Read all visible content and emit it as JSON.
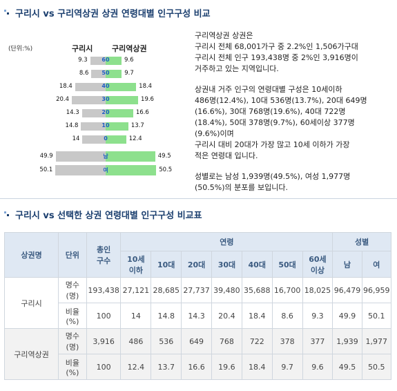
{
  "section1": {
    "title": "구리시 vs 구리역상권 상권 연령대별 인구구성 비교"
  },
  "pyramid": {
    "unit_label": "(단위:%)",
    "left_header": "구리시",
    "right_header": "구리역상권",
    "rows": [
      {
        "age": "60",
        "left": 9.3,
        "right": 9.6,
        "left_text": "9.3",
        "right_text": "9.6"
      },
      {
        "age": "50",
        "left": 8.6,
        "right": 9.7,
        "left_text": "8.6",
        "right_text": "9.7"
      },
      {
        "age": "40",
        "left": 18.4,
        "right": 18.4,
        "left_text": "18.4",
        "right_text": "18.4"
      },
      {
        "age": "30",
        "left": 20.4,
        "right": 19.6,
        "left_text": "20.4",
        "right_text": "19.6"
      },
      {
        "age": "20",
        "left": 14.3,
        "right": 16.6,
        "left_text": "14.3",
        "right_text": "16.6"
      },
      {
        "age": "10",
        "left": 14.8,
        "right": 13.7,
        "left_text": "14.8",
        "right_text": "13.7"
      },
      {
        "age": "0",
        "left": 14,
        "right": 12.4,
        "left_text": "14",
        "right_text": "12.4"
      }
    ],
    "gender_rows": [
      {
        "label": "남",
        "left": 49.9,
        "right": 49.5,
        "left_text": "49.9",
        "right_text": "49.5"
      },
      {
        "label": "여",
        "left": 50.1,
        "right": 50.5,
        "left_text": "50.1",
        "right_text": "50.5"
      }
    ]
  },
  "description": {
    "p1": "구리역상권 상권은\n구리시 전체 68,001가구 중 2.2%인 1,506가구대\n구리시 전체 인구 193,438명 중 2%인 3,916명이\n거주하고 있는 지역입니다.",
    "p2": "상권내 거주 인구의 연령대별 구성은 10세이하\n486명(12.4%), 10대 536명(13.7%), 20대 649명\n(16.6%), 30대 768명(19.6%), 40대 722명\n(18.4%), 50대 378명(9.7%), 60세이상 377명\n(9.6%)이며\n구리시 대비 20대가 가장 많고 10세 이하가 가장\n적은 연령대 입니다.",
    "p3": "성별로는 남성 1,939명(49.5%), 여성 1,977명\n(50.5%)의 분포를 보입니다."
  },
  "section2": {
    "title": "구리시 vs 선택한 상권 연령대별 인구구성 비교표"
  },
  "table": {
    "headers": {
      "area": "상권명",
      "unit": "단위",
      "households": "총인\n구수",
      "age_group": "연령",
      "gender_group": "성별",
      "ages": [
        "10세\n이하",
        "10대",
        "20대",
        "30대",
        "40대",
        "50대",
        "60세\n이상"
      ],
      "genders": [
        "남",
        "여"
      ]
    },
    "rows": [
      {
        "area": "구리시",
        "count_label": "명수\n(명)",
        "counts": [
          "193,438",
          "27,121",
          "28,685",
          "27,737",
          "39,480",
          "35,688",
          "16,700",
          "18,025",
          "96,479",
          "96,959"
        ],
        "ratio_label": "비율\n(%)",
        "ratios": [
          "100",
          "14",
          "14.8",
          "14.3",
          "20.4",
          "18.4",
          "8.6",
          "9.3",
          "49.9",
          "50.1"
        ]
      },
      {
        "area": "구리역상권",
        "count_label": "명수\n(명)",
        "counts": [
          "3,916",
          "486",
          "536",
          "649",
          "768",
          "722",
          "378",
          "377",
          "1,939",
          "1,977"
        ],
        "ratio_label": "비율\n(%)",
        "ratios": [
          "100",
          "12.4",
          "13.7",
          "16.6",
          "19.6",
          "18.4",
          "9.7",
          "9.6",
          "49.5",
          "50.5"
        ]
      }
    ]
  },
  "colors": {
    "left_bar": "#c8c8c8",
    "right_bar": "#8de08d",
    "title": "#1a3e6e",
    "header_bg": "#dfe8f3"
  }
}
